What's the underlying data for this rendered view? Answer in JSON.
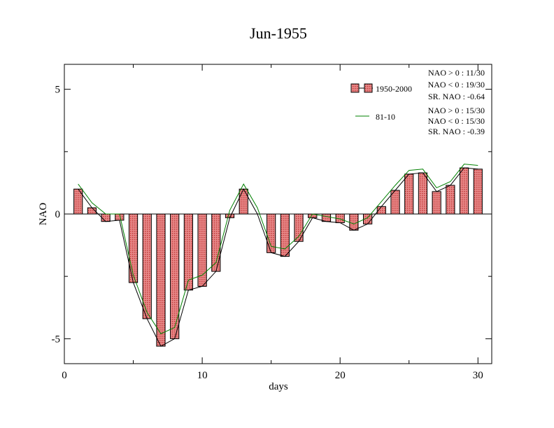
{
  "chart_data": {
    "type": "bar",
    "title": "Jun-1955",
    "xlabel": "days",
    "ylabel": "NAO",
    "xlim": [
      0,
      31
    ],
    "ylim": [
      -6,
      6
    ],
    "x_ticks": [
      0,
      10,
      20,
      30
    ],
    "x_tick_labels": [
      "0",
      "10",
      "20",
      "30"
    ],
    "y_ticks": [
      -5,
      0,
      5
    ],
    "y_tick_labels": [
      "-5",
      "0",
      "5"
    ],
    "grid": false,
    "legend_position": "top-right",
    "days": [
      1,
      2,
      3,
      4,
      5,
      6,
      7,
      8,
      9,
      10,
      11,
      12,
      13,
      14,
      15,
      16,
      17,
      18,
      19,
      20,
      21,
      22,
      23,
      24,
      25,
      26,
      27,
      28,
      29,
      30
    ],
    "series": [
      {
        "name": "1950-2000",
        "kind": "bar",
        "color": "#e06666",
        "values": [
          1.0,
          0.25,
          -0.3,
          -0.25,
          -2.75,
          -4.2,
          -5.3,
          -5.0,
          -3.05,
          -2.9,
          -2.3,
          -0.15,
          1.0,
          null,
          -1.55,
          -1.7,
          -1.1,
          -0.15,
          -0.3,
          -0.35,
          -0.65,
          -0.4,
          0.3,
          0.95,
          1.6,
          1.65,
          0.9,
          1.15,
          1.85,
          1.8
        ]
      },
      {
        "name": "81-10",
        "kind": "line",
        "color": "#008000",
        "values": [
          1.2,
          0.45,
          0.0,
          0.0,
          -2.45,
          -3.95,
          -4.8,
          -4.55,
          -2.65,
          -2.45,
          -1.95,
          0.15,
          1.2,
          0.25,
          -1.3,
          -1.4,
          -0.9,
          0.0,
          -0.1,
          -0.2,
          -0.4,
          -0.15,
          0.5,
          1.15,
          1.75,
          1.8,
          1.05,
          1.3,
          2.0,
          1.95
        ]
      }
    ],
    "black_line": {
      "color": "#000000",
      "values": [
        1.0,
        0.25,
        -0.3,
        -0.25,
        -2.75,
        -4.2,
        -5.3,
        -5.0,
        -3.05,
        -2.9,
        -2.3,
        -0.15,
        1.0,
        0.0,
        -1.55,
        -1.7,
        -1.1,
        -0.15,
        -0.3,
        -0.35,
        -0.65,
        -0.4,
        0.3,
        0.95,
        1.6,
        1.65,
        0.9,
        1.15,
        1.85,
        1.8
      ]
    },
    "annotations": {
      "group1": [
        "NAO > 0 : 11/30",
        "NAO < 0 : 19/30",
        "SR. NAO : -0.64"
      ],
      "group2": [
        "NAO > 0 : 15/30",
        "NAO < 0 : 15/30",
        "SR. NAO : -0.39"
      ]
    }
  }
}
